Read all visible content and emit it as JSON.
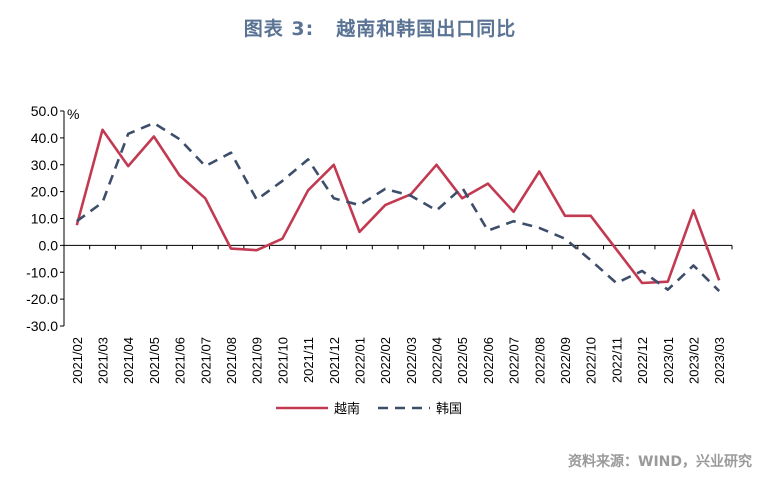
{
  "header": {
    "title_prefix": "图表 3:",
    "title_main": "越南和韩国出口同比"
  },
  "footer": {
    "source": "资料来源：WIND，兴业研究"
  },
  "chart_data": {
    "type": "line",
    "title": "越南和韩国出口同比",
    "ylabel": "%",
    "ylim": [
      -30,
      50
    ],
    "y_ticks": [
      50,
      40,
      30,
      20,
      10,
      0,
      -10,
      -20,
      -30
    ],
    "y_tick_labels": [
      "50.0",
      "40.0",
      "30.0",
      "20.0",
      "10.0",
      "0.0",
      "-10.0",
      "-20.0",
      "-30.0"
    ],
    "categories": [
      "2021/02",
      "2021/03",
      "2021/04",
      "2021/05",
      "2021/06",
      "2021/07",
      "2021/08",
      "2021/09",
      "2021/10",
      "2021/11",
      "2021/12",
      "2022/01",
      "2022/02",
      "2022/03",
      "2022/04",
      "2022/05",
      "2022/06",
      "2022/07",
      "2022/08",
      "2022/09",
      "2022/10",
      "2022/11",
      "2022/12",
      "2023/01",
      "2023/02",
      "2023/03"
    ],
    "legend_position": "bottom",
    "grid": false,
    "series": [
      {
        "name": "越南",
        "color": "#c23a52",
        "dash": "solid",
        "values": [
          7.5,
          43,
          29.5,
          40.5,
          26,
          17.5,
          -1.2,
          -1.8,
          2.5,
          20.5,
          30,
          5,
          15,
          19,
          30,
          17.5,
          23,
          12.5,
          27.5,
          11,
          11,
          -1.5,
          -14,
          -13.5,
          13,
          -13
        ]
      },
      {
        "name": "韩国",
        "color": "#3d4e6a",
        "dash": "dashed",
        "values": [
          9,
          16,
          41.5,
          45.5,
          39.5,
          29.5,
          34.5,
          17,
          24,
          32,
          17.5,
          15,
          21,
          18.5,
          13,
          21.5,
          5.5,
          9,
          6.5,
          2.5,
          -5.5,
          -14,
          -9.5,
          -16.5,
          -7.5,
          -17
        ]
      }
    ]
  }
}
